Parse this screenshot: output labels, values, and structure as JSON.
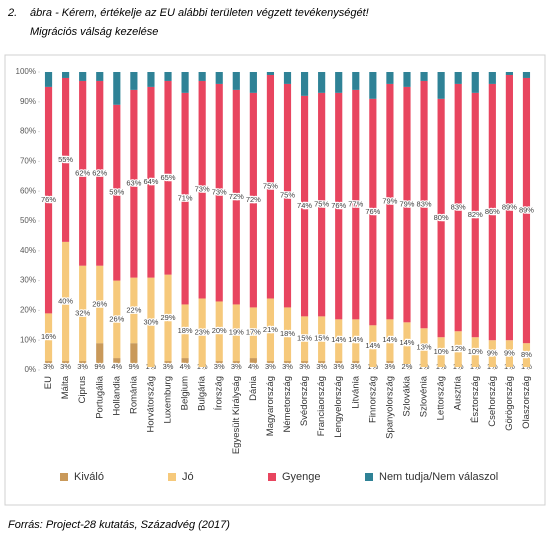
{
  "chart_data": {
    "type": "stacked_bar",
    "figure_number": "2.",
    "title": "ábra - Kérem, értékelje az EU alábbi területen végzett tevékenységét!",
    "subtitle": "Migrációs válság kezelése",
    "source": "Forrás: Project-28 kutatás, Századvég (2017)",
    "categories": [
      "EU",
      "Málta",
      "Ciprus",
      "Portugália",
      "Hollandia",
      "Románia",
      "Horvátország",
      "Luxemburg",
      "Belgium",
      "Bulgária",
      "Írország",
      "Egyesült Királyság",
      "Dánia",
      "Magyarország",
      "Németország",
      "Svédország",
      "Franciaország",
      "Lengyelország",
      "Litvánia",
      "Finnország",
      "Spanyolország",
      "Szlovákia",
      "Szlovénia",
      "Lettország",
      "Ausztria",
      "Észtország",
      "Csehország",
      "Görögország",
      "Olaszország"
    ],
    "series": [
      {
        "name": "Kiváló",
        "color": "#c9995a",
        "values": [
          3,
          3,
          3,
          9,
          4,
          9,
          1,
          3,
          4,
          1,
          3,
          3,
          4,
          3,
          3,
          3,
          3,
          3,
          3,
          1,
          3,
          2,
          1,
          1,
          1,
          1,
          1,
          1,
          1
        ],
        "value_labels": [
          "3%",
          "3%",
          "3%",
          "9%",
          "4%",
          "9%",
          "1%",
          "3%",
          "4%",
          "1%",
          "3%",
          "3%",
          "4%",
          "3%",
          "3%",
          "3%",
          "3%",
          "3%",
          "3%",
          "1%",
          "3%",
          "2%",
          "1%",
          "1%",
          "1%",
          "1%",
          "1%",
          "1%",
          "1%"
        ]
      },
      {
        "name": "Jó",
        "color": "#f6c97b",
        "values": [
          16,
          40,
          32,
          26,
          26,
          22,
          30,
          29,
          18,
          23,
          20,
          19,
          17,
          21,
          18,
          15,
          15,
          14,
          14,
          14,
          14,
          14,
          13,
          10,
          12,
          10,
          9,
          9,
          8
        ],
        "value_labels": [
          "16%",
          "40%",
          "32%",
          "26%",
          "26%",
          "22%",
          "30%",
          "29%",
          "18%",
          "23%",
          "20%",
          "19%",
          "17%",
          "21%",
          "18%",
          "15%",
          "15%",
          "14%",
          "14%",
          "14%",
          "14%",
          "14%",
          "13%",
          "10%",
          "12%",
          "10%",
          "9%",
          "9%",
          "8%"
        ]
      },
      {
        "name": "Gyenge",
        "color": "#e8455f",
        "values": [
          76,
          55,
          62,
          62,
          59,
          63,
          64,
          65,
          71,
          73,
          73,
          72,
          72,
          75,
          75,
          74,
          75,
          76,
          77,
          76,
          79,
          79,
          83,
          80,
          83,
          82,
          86,
          89,
          89
        ],
        "value_labels": [
          "76%",
          "55%",
          "62%",
          "62%",
          "59%",
          "63%",
          "64%",
          "65%",
          "71%",
          "73%",
          "73%",
          "72%",
          "72%",
          "75%",
          "75%",
          "74%",
          "75%",
          "76%",
          "77%",
          "76%",
          "79%",
          "79%",
          "83%",
          "80%",
          "83%",
          "82%",
          "86%",
          "89%",
          "89%"
        ]
      },
      {
        "name": "Nem tudja/Nem válaszol",
        "color": "#2f8296",
        "values": [
          5,
          2,
          3,
          3,
          11,
          6,
          5,
          3,
          7,
          3,
          4,
          6,
          7,
          1,
          4,
          8,
          7,
          7,
          6,
          9,
          4,
          5,
          3,
          9,
          4,
          7,
          4,
          1,
          2
        ]
      }
    ],
    "ylim": [
      0,
      100
    ],
    "yticks": [
      {
        "value": 0,
        "label": "0%"
      },
      {
        "value": 10,
        "label": "10%"
      },
      {
        "value": 20,
        "label": "20%"
      },
      {
        "value": 30,
        "label": "30%"
      },
      {
        "value": 40,
        "label": "40%"
      },
      {
        "value": 50,
        "label": "50%"
      },
      {
        "value": 60,
        "label": "60%"
      },
      {
        "value": 70,
        "label": "70%"
      },
      {
        "value": 80,
        "label": "80%"
      },
      {
        "value": 90,
        "label": "90%"
      },
      {
        "value": 100,
        "label": "100%"
      }
    ],
    "legend": "bottom"
  }
}
